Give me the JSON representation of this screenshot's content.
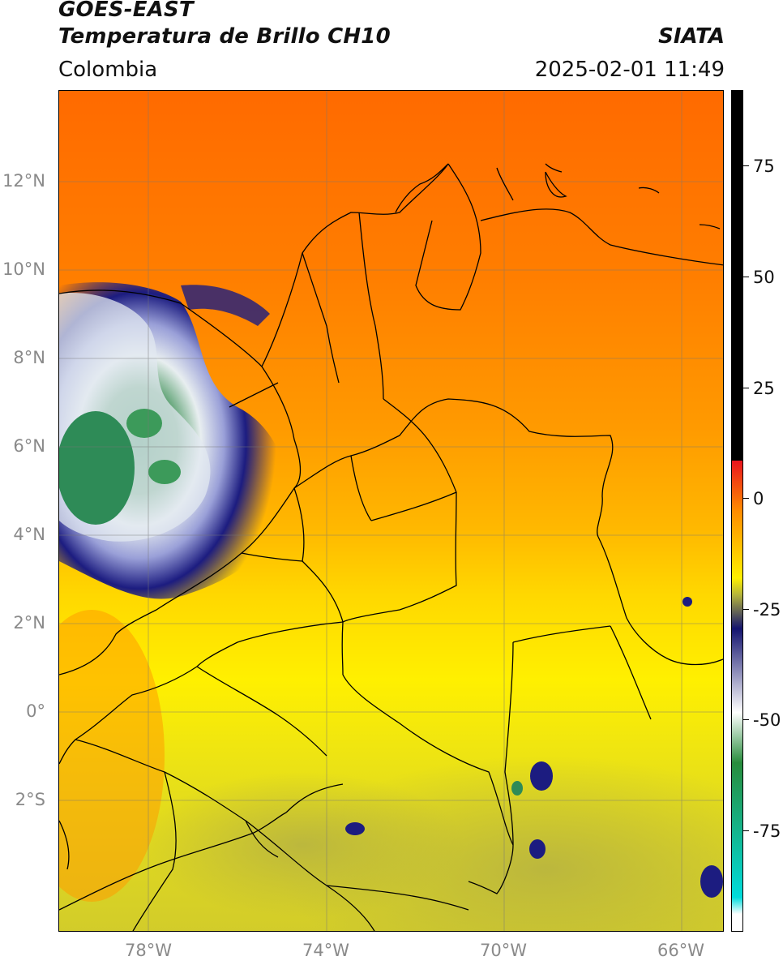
{
  "header": {
    "satellite": "GOES-EAST",
    "product": "Temperatura de Brillo CH10",
    "agency": "SIATA",
    "region": "Colombia",
    "datetime": "2025-02-01 11:49"
  },
  "map": {
    "lat_labels": [
      "12°N",
      "10°N",
      "8°N",
      "6°N",
      "4°N",
      "2°N",
      "0°",
      "2°S"
    ],
    "lon_labels": [
      "78°W",
      "74°W",
      "70°W",
      "66°W"
    ],
    "gridlines": true
  },
  "colorbar": {
    "tick_labels": [
      "75",
      "50",
      "25",
      "0",
      "-25",
      "-50",
      "-75"
    ],
    "colors": {
      "black": "#000000",
      "red": "#e8141e",
      "orange": "#ff8c00",
      "yellow": "#fff000",
      "olive": "#b4b43c",
      "navy": "#14146e",
      "white": "#ffffff",
      "green": "#288c3c",
      "cyan": "#00dcdc"
    }
  }
}
